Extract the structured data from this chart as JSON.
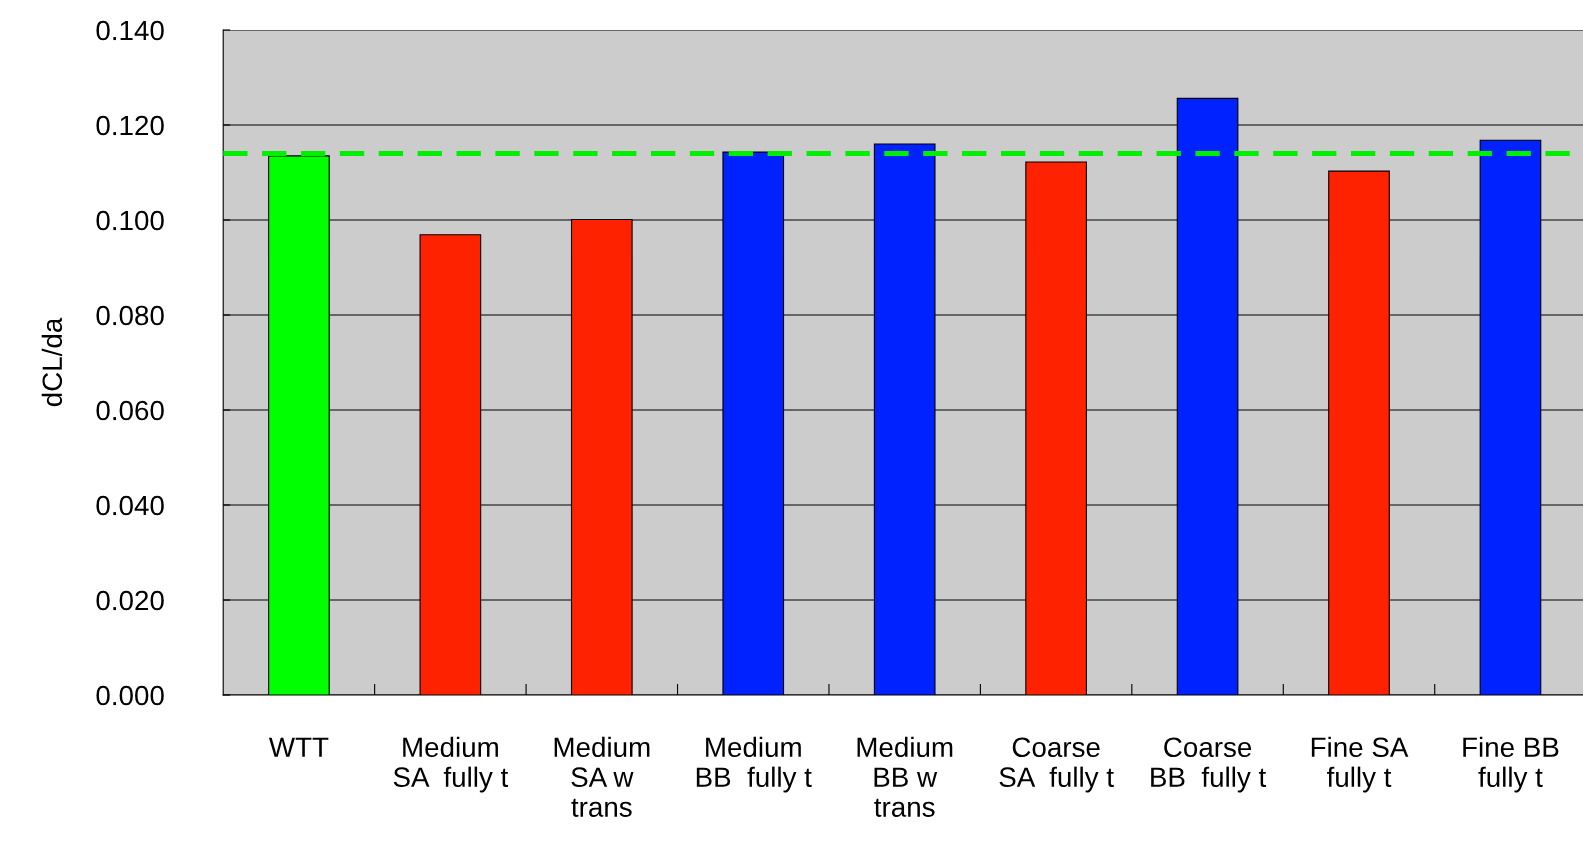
{
  "chart_data": {
    "type": "bar",
    "ylabel": "dCL/da",
    "categories": [
      "WTT",
      "Medium\nSA  fully t",
      "Medium\nSA w\ntrans",
      "Medium\nBB  fully t",
      "Medium\nBB w\ntrans",
      "Coarse\nSA  fully t",
      "Coarse\nBB  fully t",
      "Fine SA\nfully t",
      "Fine BB\nfully t"
    ],
    "values": [
      0.1135,
      0.0969,
      0.1001,
      0.1143,
      0.116,
      0.1122,
      0.1256,
      0.1103,
      0.1168
    ],
    "colors": [
      "#00ff00",
      "#ff2200",
      "#ff2200",
      "#0022ff",
      "#0022ff",
      "#ff2200",
      "#0022ff",
      "#ff2200",
      "#0022ff"
    ],
    "ylim": [
      0,
      0.14
    ],
    "yticks": [
      {
        "value": 0,
        "label": "0.000"
      },
      {
        "value": 0.02,
        "label": "0.020"
      },
      {
        "value": 0.04,
        "label": "0.040"
      },
      {
        "value": 0.06,
        "label": "0.060"
      },
      {
        "value": 0.08,
        "label": "0.080"
      },
      {
        "value": 0.1,
        "label": "0.100"
      },
      {
        "value": 0.12,
        "label": "0.120"
      },
      {
        "value": 0.14,
        "label": "0.140"
      }
    ],
    "grid": "y",
    "ref_lines": [
      {
        "axis": "y",
        "value": 0.114,
        "label": null,
        "color": "#00ee00",
        "line_style": "dashed"
      }
    ]
  }
}
